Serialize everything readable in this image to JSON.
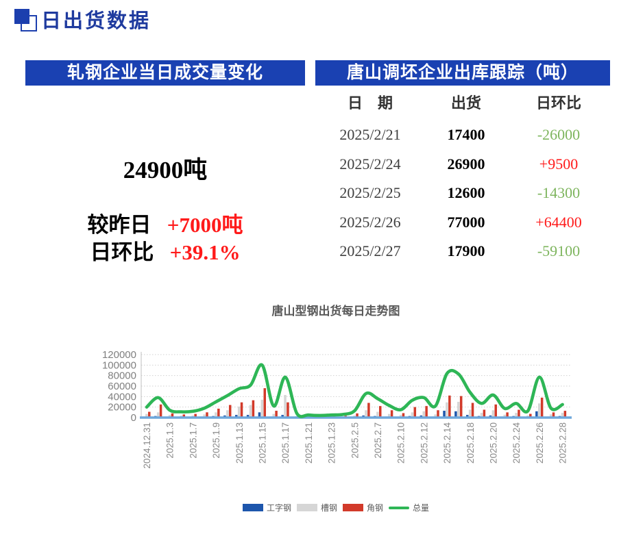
{
  "page_title": {
    "text": "日出货数据"
  },
  "left_panel": {
    "header": "轧钢企业当日成交量变化",
    "volume": "24900吨",
    "vs_yesterday_label": "较昨日",
    "vs_yesterday_value": "+7000吨",
    "vs_yesterday_direction": "up",
    "dod_label": "日环比",
    "dod_value": "+39.1%",
    "dod_direction": "up"
  },
  "right_panel": {
    "header": "唐山调坯企业出库跟踪（吨）",
    "columns": [
      "日　期",
      "出货",
      "日环比"
    ],
    "rows": [
      {
        "date": "2025/2/21",
        "shipment": "17400",
        "change": "-26000",
        "direction": "down"
      },
      {
        "date": "2025/2/24",
        "shipment": "26900",
        "change": "+9500",
        "direction": "up"
      },
      {
        "date": "2025/2/25",
        "shipment": "12600",
        "change": "-14300",
        "direction": "down"
      },
      {
        "date": "2025/2/26",
        "shipment": "77000",
        "change": "+64400",
        "direction": "up"
      },
      {
        "date": "2025/2/27",
        "shipment": "17900",
        "change": "-59100",
        "direction": "down"
      }
    ]
  },
  "chart_data": {
    "type": "combo-bar-line",
    "title": "唐山型钢出货每日走势图",
    "xlabel": "",
    "ylabel": "",
    "ylim": [
      0,
      120000
    ],
    "y_ticks": [
      0,
      20000,
      40000,
      60000,
      80000,
      100000,
      120000
    ],
    "grid": "dotted-horizontal",
    "legend_position": "bottom",
    "axis_line_color": "#6fa8dc",
    "x": [
      "2024.12.31",
      "",
      "2025.1.3",
      "",
      "2025.1.7",
      "",
      "2025.1.9",
      "",
      "2025.1.13",
      "",
      "2025.1.15",
      "",
      "2025.1.17",
      "",
      "2025.1.21",
      "",
      "2025.1.23",
      "",
      "2025.2.5",
      "",
      "2025.2.7",
      "",
      "2025.2.10",
      "",
      "2025.2.12",
      "",
      "2025.2.14",
      "",
      "2025.2.18",
      "",
      "2025.2.20",
      "",
      "2025.2.24",
      "",
      "2025.2.26",
      "",
      "2025.2.28"
    ],
    "series": [
      {
        "name": "工字钢",
        "type": "bar",
        "color": "#1d56ac",
        "values": [
          2000,
          3000,
          1000,
          1000,
          1000,
          2000,
          3000,
          4000,
          5000,
          5000,
          10000,
          2000,
          5000,
          500,
          500,
          300,
          500,
          500,
          1000,
          4000,
          3000,
          2000,
          1500,
          3000,
          4000,
          2000,
          13000,
          12000,
          5000,
          3000,
          4000,
          2000,
          3000,
          1500,
          12000,
          2000,
          3000
        ]
      },
      {
        "name": "槽钢",
        "type": "bar",
        "color": "#d6d6d6",
        "values": [
          7000,
          10000,
          5000,
          4000,
          4000,
          6000,
          10000,
          14000,
          21000,
          24000,
          34000,
          7000,
          43000,
          3000,
          1500,
          1200,
          1500,
          2000,
          4000,
          14000,
          11000,
          7000,
          5000,
          10000,
          12000,
          6000,
          29000,
          30000,
          15000,
          9000,
          14000,
          5500,
          9000,
          4000,
          27000,
          6000,
          9000
        ]
      },
      {
        "name": "角钢",
        "type": "bar",
        "color": "#d23a2a",
        "values": [
          11000,
          25000,
          8000,
          6000,
          7000,
          10000,
          17000,
          24000,
          29000,
          33000,
          56000,
          13000,
          29000,
          4500,
          3000,
          2500,
          3000,
          3500,
          8000,
          28000,
          22000,
          14000,
          8500,
          20000,
          22000,
          14000,
          42000,
          41000,
          28000,
          15000,
          25000,
          9900,
          14900,
          7100,
          38000,
          9900,
          12900
        ]
      },
      {
        "name": "总量",
        "type": "line",
        "color": "#2eb656",
        "values": [
          20000,
          38000,
          14000,
          11000,
          12000,
          18000,
          30000,
          42000,
          55000,
          62000,
          100000,
          22000,
          77000,
          8000,
          5000,
          4000,
          5000,
          6000,
          13000,
          46000,
          36000,
          23000,
          15000,
          33000,
          38000,
          22000,
          84000,
          83000,
          48000,
          27000,
          43000,
          17400,
          26900,
          12600,
          77000,
          17900,
          24900
        ]
      }
    ]
  },
  "colors": {
    "header_bar_blue": "#1a41b2",
    "page_title_blue": "#1e3a9e",
    "positive_red": "#ff1a1a",
    "negative_green": "#7eb55e",
    "chart_title_gray": "#595959",
    "tick_label_gray": "#8a8a8a"
  }
}
